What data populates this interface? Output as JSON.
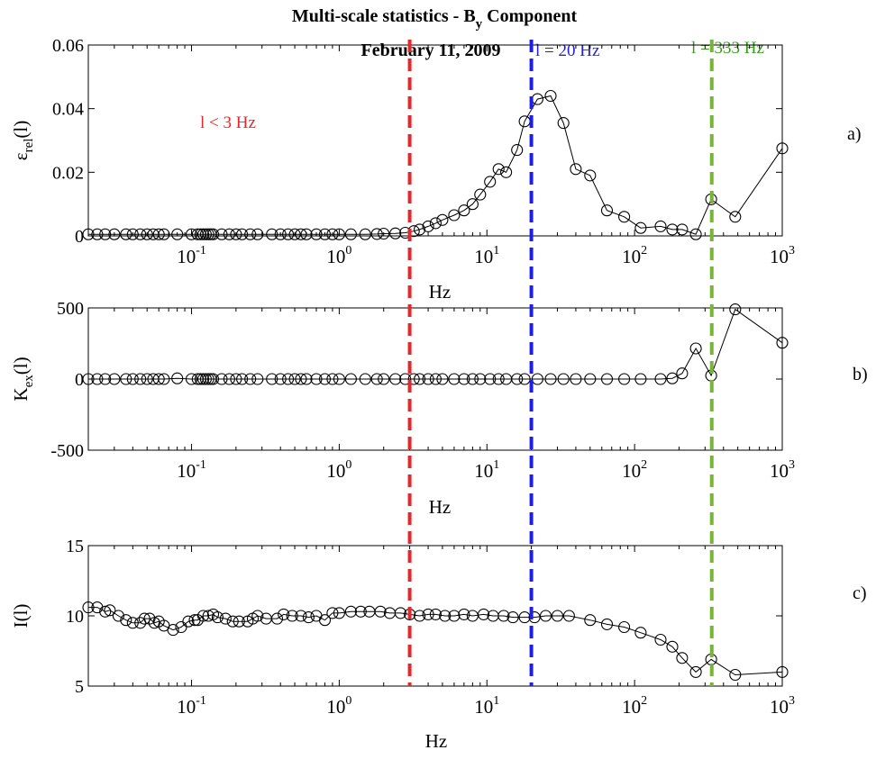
{
  "figure": {
    "title_main": "Multi-scale statistics - B",
    "title_sub": "y",
    "title_tail": " Component",
    "date": "February 11, 2009",
    "line_labels": [
      "l = 20 Hz",
      "l = 333 Hz"
    ],
    "region_label": "l < 3 Hz"
  },
  "colors": {
    "red": "#e8262b",
    "blue": "#1f1fe0",
    "green": "#78b33a",
    "marker": "#000000"
  },
  "chart_data": [
    {
      "type": "line",
      "panel_label": "a)",
      "xscale": "log",
      "xlim": [
        0.02,
        1000
      ],
      "ylim": [
        0,
        0.06
      ],
      "yticks": [
        0,
        0.02,
        0.04,
        0.06
      ],
      "ytick_labels": [
        "0",
        "0.02",
        "0.04",
        "0.06"
      ],
      "xticks": [
        0.1,
        1,
        10,
        100,
        1000
      ],
      "xtick_labels": [
        "10",
        "10",
        "10",
        "10",
        "10"
      ],
      "xtick_exps": [
        "-1",
        "0",
        "1",
        "2",
        "3"
      ],
      "xlabel": "Hz",
      "ylabel_main": "ε",
      "ylabel_sub": "rel",
      "ylabel_tail": "(l)",
      "marker": "circle",
      "vlines": [
        3,
        20,
        333
      ],
      "x": [
        0.02,
        0.023,
        0.026,
        0.03,
        0.036,
        0.04,
        0.045,
        0.05,
        0.055,
        0.06,
        0.065,
        0.08,
        0.1,
        0.11,
        0.115,
        0.12,
        0.125,
        0.13,
        0.135,
        0.14,
        0.16,
        0.18,
        0.2,
        0.22,
        0.25,
        0.28,
        0.35,
        0.4,
        0.45,
        0.5,
        0.55,
        0.6,
        0.7,
        0.8,
        0.9,
        1.0,
        1.2,
        1.5,
        1.8,
        2.0,
        2.4,
        2.8,
        3.2,
        3.5,
        4.0,
        4.5,
        5.0,
        6.0,
        7.0,
        8.0,
        9.0,
        10.5,
        12.0,
        13.5,
        16.0,
        18.0,
        22.0,
        27.0,
        33.0,
        40.0,
        50.0,
        65.0,
        85.0,
        110.0,
        150.0,
        180.0,
        210.0,
        260.0,
        330.0,
        480.0,
        1000.0
      ],
      "y": [
        0.0005,
        0.0005,
        0.0005,
        0.0005,
        0.0005,
        0.0005,
        0.0005,
        0.0005,
        0.0005,
        0.0005,
        0.0005,
        0.0005,
        0.0005,
        0.0005,
        0.0005,
        0.0005,
        0.0005,
        0.0005,
        0.0005,
        0.0005,
        0.0005,
        0.0005,
        0.0005,
        0.0005,
        0.0005,
        0.0005,
        0.0005,
        0.0005,
        0.0005,
        0.0005,
        0.0005,
        0.0005,
        0.0005,
        0.0005,
        0.0005,
        0.0005,
        0.0005,
        0.0005,
        0.0006,
        0.0007,
        0.0008,
        0.001,
        0.0015,
        0.002,
        0.003,
        0.004,
        0.005,
        0.0065,
        0.008,
        0.01,
        0.013,
        0.017,
        0.021,
        0.02,
        0.027,
        0.036,
        0.043,
        0.044,
        0.0355,
        0.021,
        0.019,
        0.008,
        0.006,
        0.0025,
        0.003,
        0.002,
        0.002,
        0.0005,
        0.0115,
        0.006,
        0.0275
      ]
    },
    {
      "type": "line",
      "panel_label": "b)",
      "xscale": "log",
      "xlim": [
        0.02,
        1000
      ],
      "ylim": [
        -500,
        500
      ],
      "yticks": [
        -500,
        0,
        500
      ],
      "ytick_labels": [
        "-500",
        "0",
        "500"
      ],
      "xticks": [
        0.1,
        1,
        10,
        100,
        1000
      ],
      "xtick_labels": [
        "10",
        "10",
        "10",
        "10",
        "10"
      ],
      "xtick_exps": [
        "-1",
        "0",
        "1",
        "2",
        "3"
      ],
      "xlabel": "Hz",
      "ylabel_main": "K",
      "ylabel_sub": "ex",
      "ylabel_tail": "(l)",
      "marker": "circle",
      "vlines": [
        3,
        20,
        333
      ],
      "x": [
        0.02,
        0.023,
        0.026,
        0.03,
        0.036,
        0.04,
        0.045,
        0.05,
        0.055,
        0.06,
        0.065,
        0.08,
        0.1,
        0.11,
        0.115,
        0.12,
        0.125,
        0.13,
        0.135,
        0.14,
        0.16,
        0.18,
        0.2,
        0.22,
        0.25,
        0.28,
        0.35,
        0.4,
        0.45,
        0.5,
        0.55,
        0.6,
        0.7,
        0.8,
        0.9,
        1.0,
        1.2,
        1.5,
        1.8,
        2.0,
        2.4,
        2.8,
        3.2,
        3.5,
        4.0,
        4.5,
        5.0,
        6.0,
        7.0,
        8.0,
        9.0,
        10.5,
        12.0,
        13.5,
        16.0,
        18.0,
        22.0,
        27.0,
        33.0,
        40.0,
        50.0,
        65.0,
        85.0,
        110.0,
        150.0,
        180.0,
        210.0,
        260.0,
        330.0,
        480.0,
        1000.0
      ],
      "y": [
        0,
        0,
        0,
        0,
        0,
        0,
        0,
        0,
        0,
        0,
        0,
        5,
        0,
        0,
        0,
        0,
        0,
        0,
        0,
        0,
        0,
        0,
        0,
        0,
        0,
        0,
        0,
        0,
        0,
        0,
        0,
        0,
        0,
        0,
        0,
        0,
        0,
        0,
        0,
        0,
        0,
        0,
        0,
        0,
        0,
        0,
        0,
        0,
        0,
        0,
        0,
        0,
        0,
        0,
        0,
        0,
        0,
        0,
        0,
        0,
        0,
        0,
        0,
        0,
        0,
        5,
        40,
        215,
        25,
        490,
        255
      ]
    },
    {
      "type": "line",
      "panel_label": "c)",
      "xscale": "log",
      "xlim": [
        0.02,
        1000
      ],
      "ylim": [
        5,
        15
      ],
      "yticks": [
        5,
        10,
        15
      ],
      "ytick_labels": [
        "5",
        "10",
        "15"
      ],
      "xticks": [
        0.1,
        1,
        10,
        100,
        1000
      ],
      "xtick_labels": [
        "10",
        "10",
        "10",
        "10",
        "10"
      ],
      "xtick_exps": [
        "-1",
        "0",
        "1",
        "2",
        "3"
      ],
      "xlabel": "Hz",
      "ylabel_main": "I(l)",
      "ylabel_sub": "",
      "ylabel_tail": "",
      "marker": "circle",
      "vlines": [
        3,
        20,
        333
      ],
      "x": [
        0.02,
        0.023,
        0.026,
        0.028,
        0.032,
        0.036,
        0.04,
        0.045,
        0.048,
        0.052,
        0.056,
        0.06,
        0.065,
        0.075,
        0.085,
        0.095,
        0.105,
        0.11,
        0.12,
        0.13,
        0.14,
        0.15,
        0.17,
        0.19,
        0.21,
        0.24,
        0.26,
        0.28,
        0.32,
        0.38,
        0.42,
        0.48,
        0.55,
        0.62,
        0.7,
        0.8,
        0.9,
        1.0,
        1.2,
        1.4,
        1.6,
        1.9,
        2.2,
        2.6,
        3.0,
        3.5,
        4.0,
        4.5,
        5.2,
        6.0,
        7.0,
        8.0,
        9.5,
        11.0,
        13.0,
        15.0,
        18.0,
        21.0,
        25.0,
        30.0,
        36.0,
        50.0,
        65.0,
        85.0,
        110.0,
        150.0,
        180.0,
        210.0,
        260.0,
        330.0,
        480.0,
        1000.0
      ],
      "y": [
        10.6,
        10.6,
        10.3,
        10.4,
        10.0,
        9.7,
        9.5,
        9.5,
        9.8,
        9.8,
        9.5,
        9.6,
        9.3,
        9.0,
        9.2,
        9.6,
        9.7,
        9.7,
        10.0,
        10.0,
        10.1,
        9.9,
        9.8,
        9.6,
        9.6,
        9.6,
        9.8,
        10.0,
        9.8,
        9.8,
        10.1,
        10.0,
        10.0,
        9.9,
        10.0,
        9.7,
        10.2,
        10.2,
        10.3,
        10.3,
        10.3,
        10.3,
        10.2,
        10.2,
        10.1,
        10.0,
        10.1,
        10.1,
        10.0,
        10.0,
        10.1,
        10.0,
        10.1,
        10.0,
        10.0,
        9.9,
        9.9,
        9.9,
        10.0,
        10.0,
        10.0,
        9.7,
        9.4,
        9.2,
        8.8,
        8.3,
        7.8,
        7.0,
        6.0,
        6.9,
        5.8,
        6.0
      ]
    }
  ]
}
